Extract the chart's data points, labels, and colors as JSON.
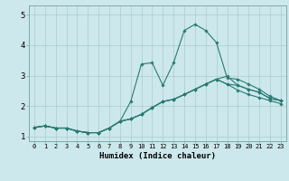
{
  "xlabel": "Humidex (Indice chaleur)",
  "bg_color": "#cce8ec",
  "grid_color": "#aacccc",
  "line_color": "#2a7a72",
  "xlim_min": -0.5,
  "xlim_max": 23.5,
  "ylim_min": 0.85,
  "ylim_max": 5.3,
  "xticks": [
    0,
    1,
    2,
    3,
    4,
    5,
    6,
    7,
    8,
    9,
    10,
    11,
    12,
    13,
    14,
    15,
    16,
    17,
    18,
    19,
    20,
    21,
    22,
    23
  ],
  "yticks": [
    1,
    2,
    3,
    4,
    5
  ],
  "series": [
    [
      1.3,
      1.35,
      1.28,
      1.28,
      1.18,
      1.13,
      1.13,
      1.28,
      1.5,
      1.58,
      1.73,
      1.95,
      2.15,
      2.22,
      2.38,
      2.55,
      2.72,
      2.88,
      2.72,
      2.68,
      2.55,
      2.45,
      2.25,
      2.18
    ],
    [
      1.3,
      1.35,
      1.28,
      1.28,
      1.18,
      1.13,
      1.13,
      1.28,
      1.5,
      2.15,
      3.38,
      3.42,
      2.68,
      3.42,
      4.48,
      4.68,
      4.48,
      4.08,
      2.92,
      2.88,
      2.72,
      2.55,
      2.32,
      2.18
    ],
    [
      1.3,
      1.35,
      1.28,
      1.28,
      1.18,
      1.13,
      1.13,
      1.28,
      1.5,
      1.58,
      1.73,
      1.95,
      2.15,
      2.22,
      2.38,
      2.55,
      2.72,
      2.88,
      2.98,
      2.68,
      2.55,
      2.45,
      2.25,
      2.18
    ],
    [
      1.3,
      1.35,
      1.28,
      1.28,
      1.18,
      1.13,
      1.13,
      1.28,
      1.5,
      1.58,
      1.73,
      1.95,
      2.15,
      2.22,
      2.38,
      2.55,
      2.72,
      2.88,
      2.72,
      2.52,
      2.38,
      2.28,
      2.18,
      2.08
    ]
  ],
  "xlabel_fontsize": 6.5,
  "xtick_fontsize": 5.0,
  "ytick_fontsize": 6.5
}
